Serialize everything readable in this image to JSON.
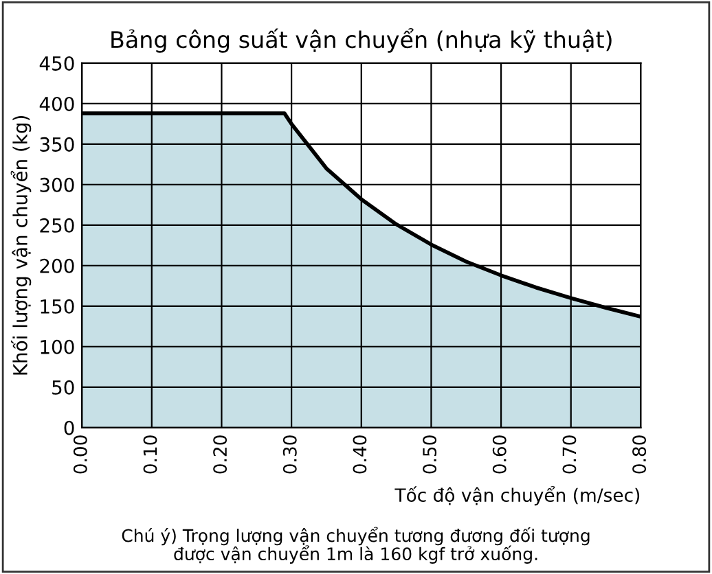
{
  "chart_data": {
    "type": "area",
    "title": "Bảng công suất vận chuyển (nhựa kỹ thuật)",
    "xlabel": "Tốc độ vận chuyển (m/sec)",
    "ylabel": "Khối lượng vận chuyển (kg)",
    "annotations": [
      "Chú ý) Trọng lượng vận chuyển tương đương đối tượng\nđược vận chuyển 1m là 160 kgf trở xuống."
    ],
    "x": [
      0,
      0.29,
      0.3,
      0.35,
      0.4,
      0.45,
      0.5,
      0.55,
      0.6,
      0.65,
      0.7,
      0.75,
      0.8
    ],
    "series": [
      {
        "color": "#c7e0e6",
        "values": [
          388,
          388,
          375,
          320,
          282,
          251,
          226,
          205,
          188,
          173,
          160,
          148,
          137
        ]
      }
    ],
    "xlim": [
      0,
      0.8
    ],
    "xticks": [
      {
        "value": 0,
        "label": "0.00"
      },
      {
        "value": 0.1,
        "label": "0.10"
      },
      {
        "value": 0.2,
        "label": "0.20"
      },
      {
        "value": 0.3,
        "label": "0.30"
      },
      {
        "value": 0.4,
        "label": "0.40"
      },
      {
        "value": 0.5,
        "label": "0.50"
      },
      {
        "value": 0.6,
        "label": "0.60"
      },
      {
        "value": 0.7,
        "label": "0.70"
      },
      {
        "value": 0.8,
        "label": "0.80"
      }
    ],
    "ylim": [
      0,
      450
    ],
    "yticks": [
      0,
      50,
      100,
      150,
      200,
      250,
      300,
      350,
      400,
      450
    ],
    "grid": true,
    "legend": false
  }
}
